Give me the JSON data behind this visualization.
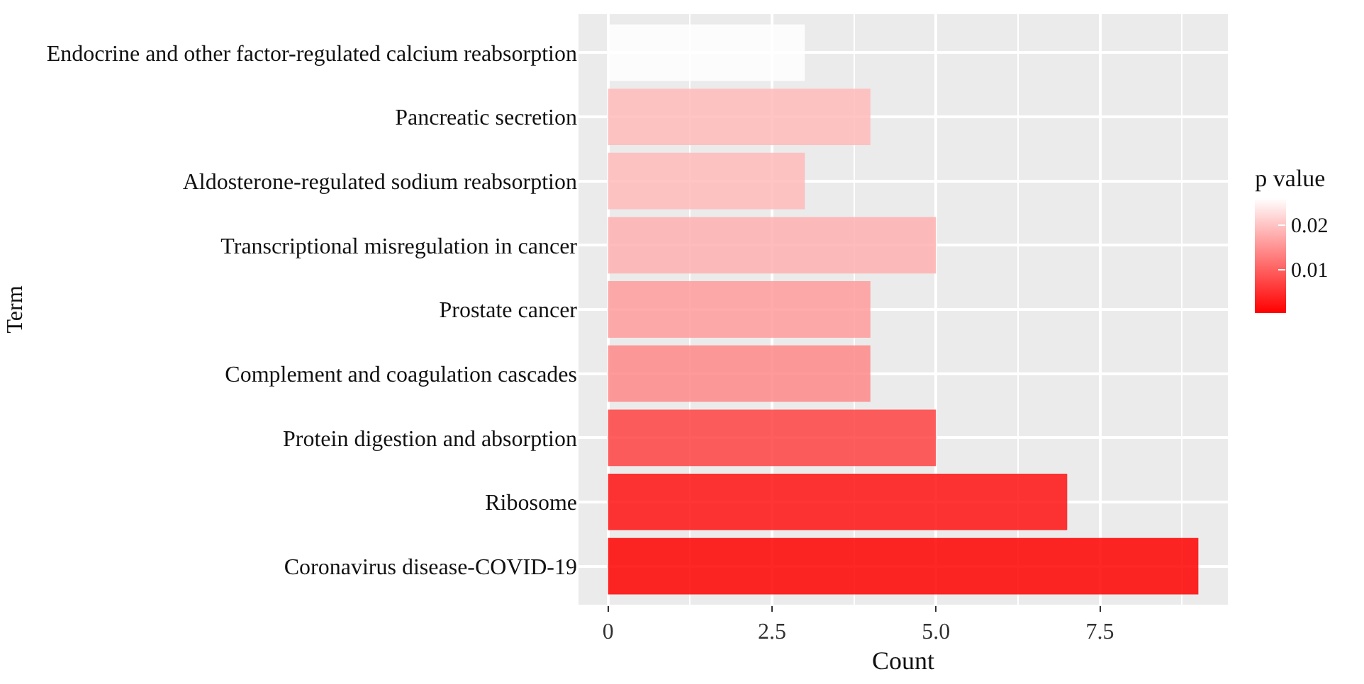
{
  "chart_data": {
    "type": "bar",
    "orientation": "horizontal",
    "xlabel": "Count",
    "ylabel": "Term",
    "clabel": "p value",
    "categories": [
      "Endocrine and other factor-regulated calcium reabsorption",
      "Pancreatic secretion",
      "Aldosterone-regulated sodium reabsorption",
      "Transcriptional misregulation in cancer",
      "Prostate cancer",
      "Complement and coagulation cascades",
      "Protein digestion and absorption",
      "Ribosome",
      "Coronavirus disease-COVID-19"
    ],
    "values": [
      3,
      4,
      3,
      5,
      4,
      4,
      5,
      7,
      9
    ],
    "cvalues": [
      0.026,
      0.019,
      0.019,
      0.018,
      0.016,
      0.014,
      0.007,
      0.002,
      0.0003
    ],
    "clim": [
      0.0003,
      0.026
    ],
    "cticks": [
      0.01,
      0.02
    ],
    "xlim": [
      -0.45,
      9.45
    ],
    "xticks": [
      0,
      2.5,
      {
        "value": 5,
        "label": "5.0"
      },
      7.5
    ],
    "grid": true
  }
}
